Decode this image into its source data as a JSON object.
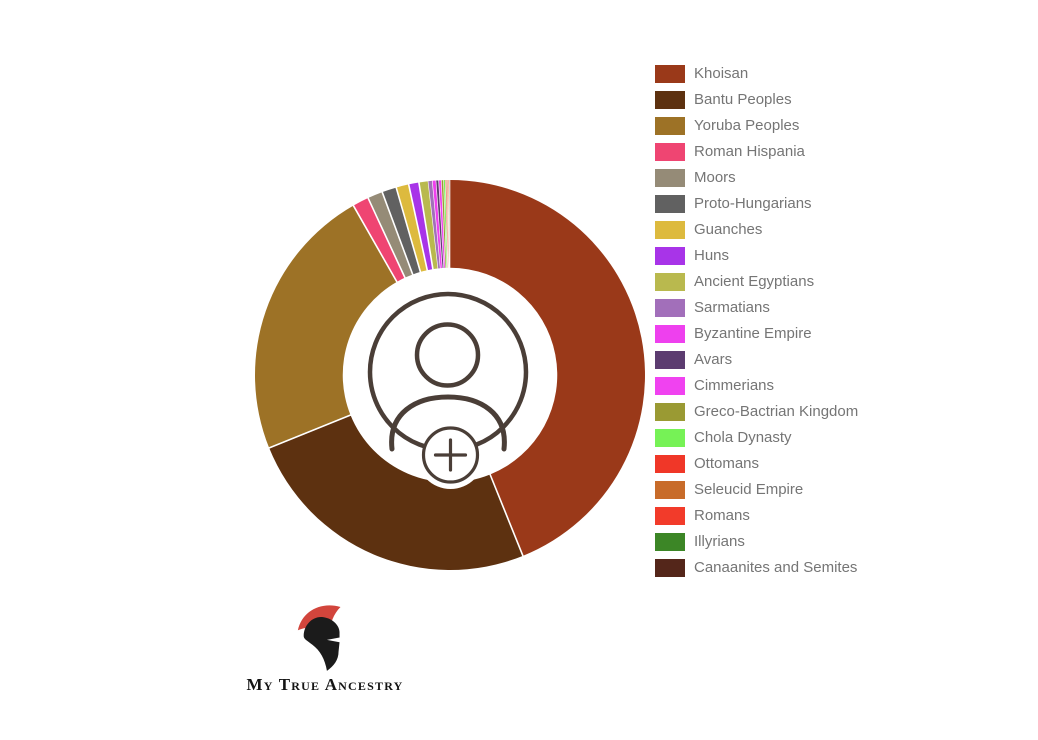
{
  "page": {
    "background": "#ffffff"
  },
  "chart_data": {
    "type": "pie",
    "variant": "donut",
    "title": "",
    "unit": "%",
    "start_angle_deg": 0,
    "direction": "clockwise",
    "inner_radius_ratio": 0.55,
    "slice_gap_color": "#ffffff",
    "legend_position": "right",
    "series": [
      {
        "name": "Khoisan",
        "value": 43.9,
        "color": "#9A3919"
      },
      {
        "name": "Bantu Peoples",
        "value": 25.0,
        "color": "#5D3110"
      },
      {
        "name": "Yoruba Peoples",
        "value": 22.85,
        "color": "#9D7226"
      },
      {
        "name": "Roman Hispania",
        "value": 1.35,
        "color": "#EF4572"
      },
      {
        "name": "Moors",
        "value": 1.25,
        "color": "#958B77"
      },
      {
        "name": "Proto-Hungarians",
        "value": 1.2,
        "color": "#616161"
      },
      {
        "name": "Guanches",
        "value": 1.05,
        "color": "#DDBA3E"
      },
      {
        "name": "Huns",
        "value": 0.85,
        "color": "#A834E8"
      },
      {
        "name": "Ancient Egyptians",
        "value": 0.75,
        "color": "#B9B94E"
      },
      {
        "name": "Sarmatians",
        "value": 0.35,
        "color": "#A26FBA"
      },
      {
        "name": "Byzantine Empire",
        "value": 0.3,
        "color": "#EE40EE"
      },
      {
        "name": "Avars",
        "value": 0.22,
        "color": "#5C3C70"
      },
      {
        "name": "Cimmerians",
        "value": 0.22,
        "color": "#F042F0"
      },
      {
        "name": "Greco-Bactrian Kingdom",
        "value": 0.18,
        "color": "#9A9A33"
      },
      {
        "name": "Chola Dynasty",
        "value": 0.15,
        "color": "#76F256"
      },
      {
        "name": "Ottomans",
        "value": 0.1,
        "color": "#F03728"
      },
      {
        "name": "Seleucid Empire",
        "value": 0.09,
        "color": "#C86C2A"
      },
      {
        "name": "Romans",
        "value": 0.08,
        "color": "#F23B2A"
      },
      {
        "name": "Illyrians",
        "value": 0.06,
        "color": "#3C8626"
      },
      {
        "name": "Canaanites and Semites",
        "value": 0.05,
        "color": "#54261A"
      }
    ]
  },
  "center_icon": {
    "semantic": "add-profile-avatar",
    "stroke_color": "#4A3E37"
  },
  "legend": {
    "text_color": "#757575"
  },
  "logo": {
    "text": "My True Ancestry",
    "crest_color": "#D2453C",
    "helmet_color": "#1B1B1B",
    "text_color": "#141414"
  }
}
